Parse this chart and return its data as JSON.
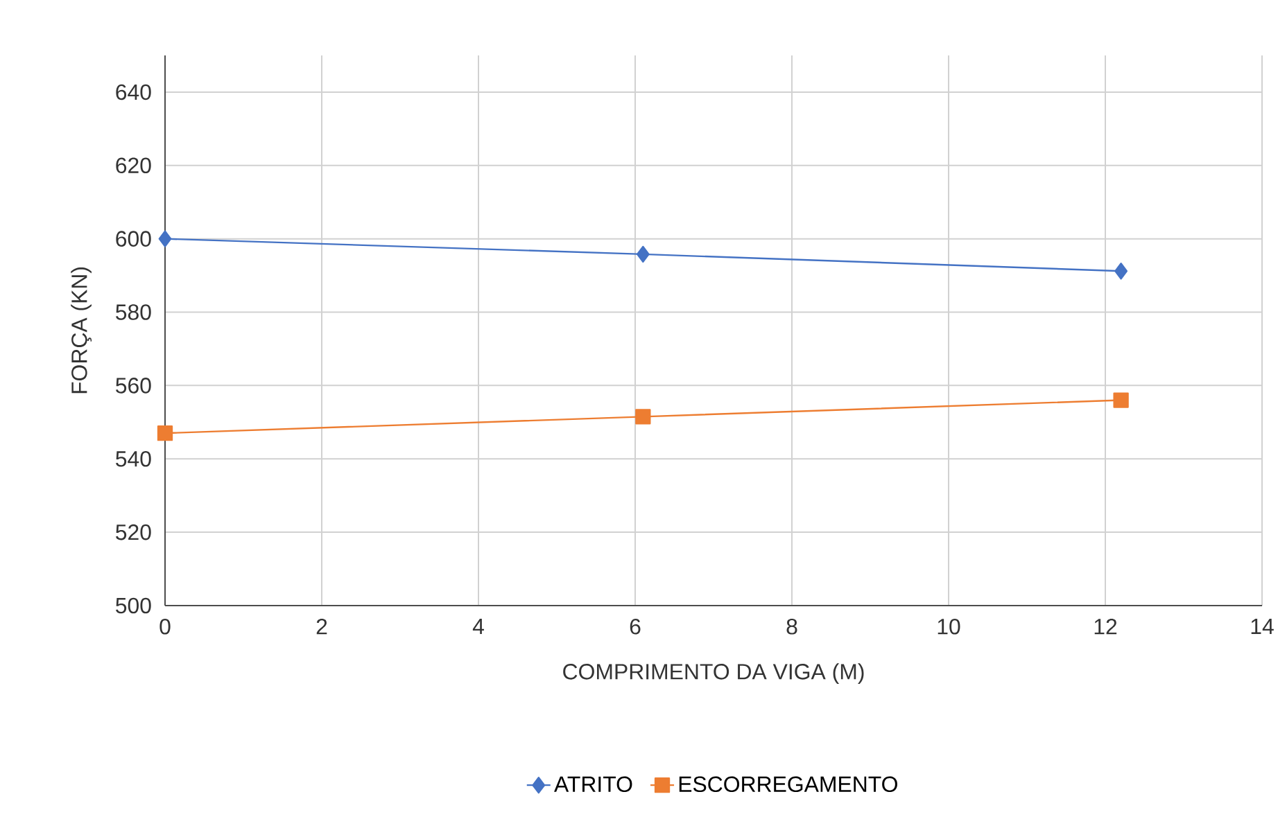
{
  "chart_data": {
    "type": "line",
    "xlabel": "COMPRIMENTO DA VIGA (M)",
    "ylabel": "FORÇA (KN)",
    "x": [
      0,
      6.1,
      12.2
    ],
    "series": [
      {
        "name": "ATRITO",
        "color": "#4472c4",
        "marker": "diamond",
        "values": [
          600,
          595.8,
          591.2
        ]
      },
      {
        "name": "ESCORREGAMENTO",
        "color": "#ed7d31",
        "marker": "square",
        "values": [
          547,
          551.5,
          556
        ]
      }
    ],
    "xlim": [
      0,
      14
    ],
    "xticks": [
      0,
      2,
      4,
      6,
      8,
      10,
      12,
      14
    ],
    "ylim": [
      500,
      650
    ],
    "yticks": [
      500,
      520,
      540,
      560,
      580,
      600,
      620,
      640
    ],
    "grid": true,
    "legend": "bottom",
    "line_style": "solid"
  }
}
